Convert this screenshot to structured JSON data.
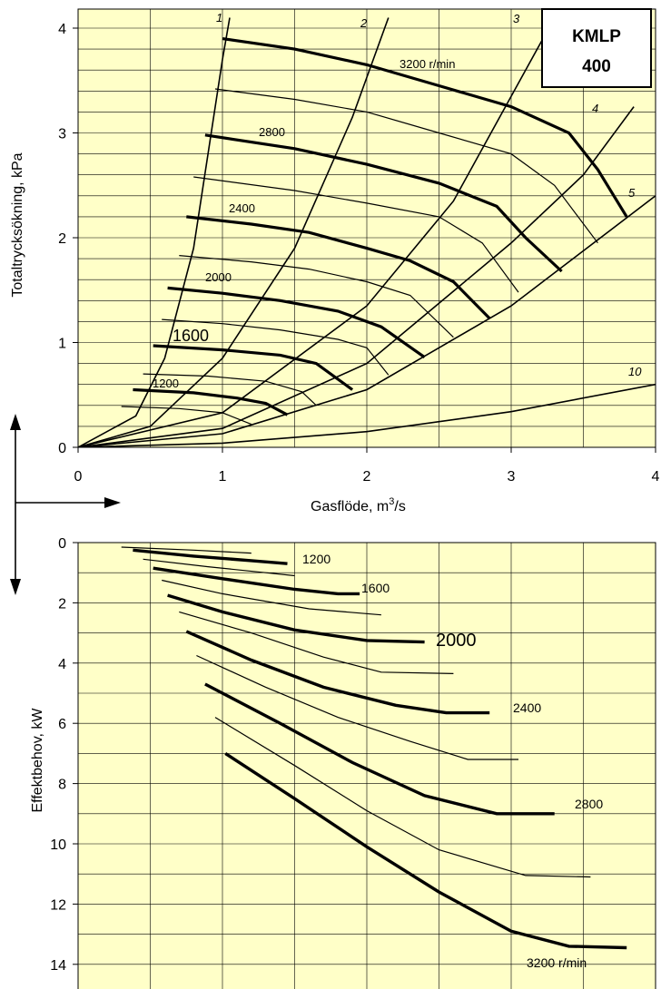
{
  "chart_data": [
    {
      "type": "line",
      "title": "",
      "ylabel": "Totaltrycksökning, kPa",
      "xlabel_main": "Gasflöde, m",
      "xlabel_sup": "3",
      "xlabel_tail": "/s",
      "xlim": [
        0,
        4
      ],
      "ylim": [
        0,
        4.1
      ],
      "x_ticks": [
        "0",
        "1",
        "2",
        "3",
        "4"
      ],
      "y_ticks": [
        "0",
        "1",
        "2",
        "3",
        "4"
      ],
      "grid": true,
      "background": "#ffffc8",
      "badge": {
        "line1": "KMLP",
        "line2": "400"
      },
      "system_lines": [
        {
          "label": "1",
          "x": [
            0,
            0.4,
            0.6,
            0.8,
            1.0,
            1.05
          ],
          "y": [
            0,
            0.3,
            0.85,
            1.9,
            3.7,
            4.1
          ]
        },
        {
          "label": "2",
          "x": [
            0,
            0.5,
            1.0,
            1.5,
            1.9,
            2.15
          ],
          "y": [
            0,
            0.2,
            0.85,
            1.9,
            3.15,
            4.1
          ]
        },
        {
          "label": "3",
          "x": [
            0,
            1.0,
            2.0,
            2.6,
            3.0,
            3.3
          ],
          "y": [
            0,
            0.33,
            1.35,
            2.35,
            3.35,
            4.1
          ]
        },
        {
          "label": "4",
          "x": [
            0,
            1.0,
            2.0,
            3.0,
            3.5,
            3.85
          ],
          "y": [
            0,
            0.18,
            0.8,
            1.95,
            2.6,
            3.25
          ]
        },
        {
          "label": "5",
          "x": [
            0,
            1.0,
            2.0,
            3.0,
            4.0
          ],
          "y": [
            0,
            0.13,
            0.55,
            1.35,
            2.4
          ]
        },
        {
          "label": "10",
          "x": [
            0,
            1.0,
            2.0,
            3.0,
            4.0
          ],
          "y": [
            0,
            0.04,
            0.15,
            0.34,
            0.6
          ]
        }
      ],
      "series": [
        {
          "name": "3200 r/min",
          "x": [
            1.0,
            1.5,
            2.0,
            2.5,
            3.0,
            3.4,
            3.6,
            3.8
          ],
          "y": [
            3.9,
            3.8,
            3.65,
            3.45,
            3.25,
            3.0,
            2.65,
            2.2
          ],
          "thick": true
        },
        {
          "name": "",
          "x": [
            0.95,
            1.5,
            2.0,
            2.5,
            3.0,
            3.3,
            3.6
          ],
          "y": [
            3.42,
            3.32,
            3.2,
            3.0,
            2.8,
            2.5,
            1.95
          ],
          "thick": false
        },
        {
          "name": "2800",
          "x": [
            0.88,
            1.5,
            2.0,
            2.5,
            2.9,
            3.1,
            3.35
          ],
          "y": [
            2.98,
            2.85,
            2.7,
            2.52,
            2.3,
            2.0,
            1.68
          ],
          "thick": true
        },
        {
          "name": "",
          "x": [
            0.8,
            1.5,
            2.0,
            2.5,
            2.8,
            3.05
          ],
          "y": [
            2.58,
            2.45,
            2.33,
            2.2,
            1.95,
            1.48
          ],
          "thick": false
        },
        {
          "name": "2400",
          "x": [
            0.75,
            1.2,
            1.6,
            2.0,
            2.3,
            2.6,
            2.85
          ],
          "y": [
            2.2,
            2.13,
            2.05,
            1.9,
            1.78,
            1.58,
            1.23
          ],
          "thick": true
        },
        {
          "name": "",
          "x": [
            0.7,
            1.2,
            1.6,
            2.0,
            2.3,
            2.6
          ],
          "y": [
            1.83,
            1.77,
            1.7,
            1.58,
            1.45,
            1.05
          ],
          "thick": false
        },
        {
          "name": "2000",
          "x": [
            0.62,
            1.0,
            1.4,
            1.8,
            2.1,
            2.4
          ],
          "y": [
            1.52,
            1.47,
            1.4,
            1.3,
            1.15,
            0.86
          ],
          "thick": true
        },
        {
          "name": "",
          "x": [
            0.58,
            1.0,
            1.4,
            1.8,
            2.0,
            2.15
          ],
          "y": [
            1.22,
            1.18,
            1.12,
            1.03,
            0.95,
            0.69
          ],
          "thick": false
        },
        {
          "name": "1600",
          "x": [
            0.52,
            1.0,
            1.4,
            1.65,
            1.9
          ],
          "y": [
            0.97,
            0.93,
            0.88,
            0.8,
            0.55
          ],
          "thick": true
        },
        {
          "name": "",
          "x": [
            0.45,
            0.9,
            1.3,
            1.55,
            1.65
          ],
          "y": [
            0.7,
            0.68,
            0.63,
            0.53,
            0.4
          ],
          "thick": false
        },
        {
          "name": "1200",
          "x": [
            0.38,
            0.8,
            1.1,
            1.3,
            1.45
          ],
          "y": [
            0.55,
            0.52,
            0.47,
            0.42,
            0.31
          ],
          "thick": true
        },
        {
          "name": "",
          "x": [
            0.3,
            0.7,
            1.0,
            1.2
          ],
          "y": [
            0.39,
            0.37,
            0.33,
            0.22
          ],
          "thick": false
        }
      ]
    },
    {
      "type": "line",
      "title": "",
      "ylabel": "Effektbehov, kW",
      "xlim": [
        0,
        4
      ],
      "ylim": [
        0,
        15
      ],
      "y_inverted": true,
      "y_ticks": [
        "0",
        "2",
        "4",
        "6",
        "8",
        "10",
        "12",
        "14"
      ],
      "grid": true,
      "background": "#ffffc8",
      "series": [
        {
          "name": "1200",
          "x": [
            0.38,
            0.8,
            1.2,
            1.45
          ],
          "y": [
            0.25,
            0.45,
            0.6,
            0.7
          ],
          "thick": true
        },
        {
          "name": "",
          "x": [
            0.3,
            0.8,
            1.2
          ],
          "y": [
            0.15,
            0.25,
            0.35
          ],
          "thick": false
        },
        {
          "name": "",
          "x": [
            0.45,
            0.9,
            1.3,
            1.5
          ],
          "y": [
            0.55,
            0.8,
            1.0,
            1.1
          ],
          "thick": false
        },
        {
          "name": "1600",
          "x": [
            0.52,
            1.0,
            1.5,
            1.8,
            1.95
          ],
          "y": [
            0.85,
            1.2,
            1.55,
            1.7,
            1.7
          ],
          "thick": true
        },
        {
          "name": "",
          "x": [
            0.58,
            1.0,
            1.6,
            2.1
          ],
          "y": [
            1.25,
            1.7,
            2.2,
            2.4
          ],
          "thick": false
        },
        {
          "name": "2000",
          "x": [
            0.62,
            1.0,
            1.5,
            2.0,
            2.4
          ],
          "y": [
            1.75,
            2.3,
            2.9,
            3.25,
            3.3
          ],
          "thick": true
        },
        {
          "name": "",
          "x": [
            0.7,
            1.2,
            1.7,
            2.1,
            2.6
          ],
          "y": [
            2.3,
            3.0,
            3.8,
            4.3,
            4.35
          ],
          "thick": false
        },
        {
          "name": "2400",
          "x": [
            0.75,
            1.2,
            1.7,
            2.2,
            2.55,
            2.85
          ],
          "y": [
            2.95,
            3.9,
            4.8,
            5.4,
            5.65,
            5.65
          ],
          "thick": true
        },
        {
          "name": "",
          "x": [
            0.82,
            1.3,
            1.8,
            2.3,
            2.7,
            3.05
          ],
          "y": [
            3.75,
            4.8,
            5.8,
            6.6,
            7.2,
            7.2
          ],
          "thick": false
        },
        {
          "name": "2800",
          "x": [
            0.88,
            1.4,
            1.9,
            2.4,
            2.9,
            3.3
          ],
          "y": [
            4.7,
            6.0,
            7.3,
            8.4,
            9.0,
            9.0
          ],
          "thick": true
        },
        {
          "name": "",
          "x": [
            0.95,
            1.5,
            2.0,
            2.5,
            3.1,
            3.55
          ],
          "y": [
            5.8,
            7.4,
            8.9,
            10.2,
            11.05,
            11.1
          ],
          "thick": false
        },
        {
          "name": "3200 r/min",
          "x": [
            1.02,
            1.5,
            2.0,
            2.5,
            3.0,
            3.4,
            3.8
          ],
          "y": [
            7.0,
            8.5,
            10.1,
            11.6,
            12.9,
            13.4,
            13.45
          ],
          "thick": true
        }
      ]
    }
  ]
}
